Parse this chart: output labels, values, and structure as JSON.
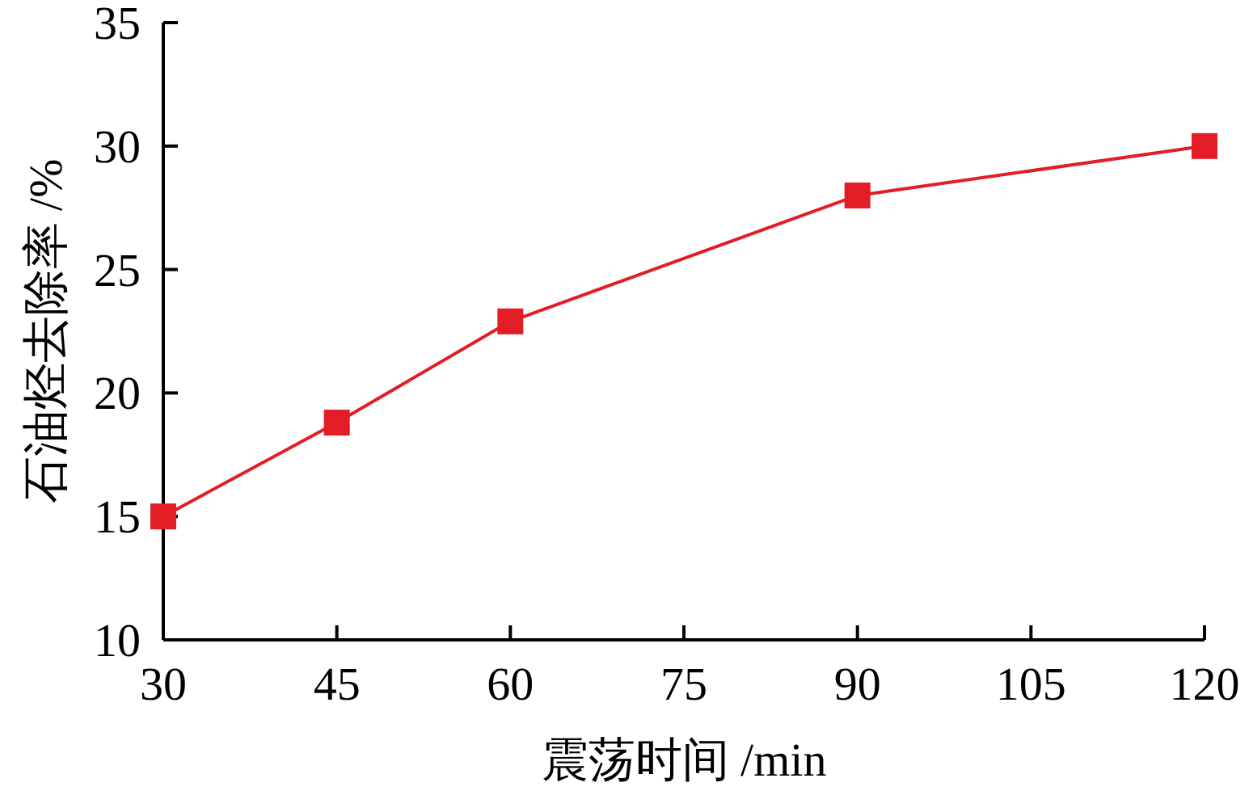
{
  "chart_data": {
    "type": "line",
    "xlabel": "震荡时间 /min",
    "ylabel": "石油烃去除率 /%",
    "x": [
      30,
      45,
      60,
      90,
      120
    ],
    "series": [
      {
        "color": "#e21d25",
        "values": [
          15,
          18.8,
          22.9,
          28,
          30
        ]
      }
    ],
    "xlim": [
      30,
      120
    ],
    "xticks": [
      30,
      45,
      60,
      75,
      90,
      105,
      120
    ],
    "ylim": [
      10,
      35
    ],
    "yticks": [
      10,
      15,
      20,
      25,
      30,
      35
    ],
    "marker": "square",
    "line_style": "solid",
    "grid": false
  }
}
